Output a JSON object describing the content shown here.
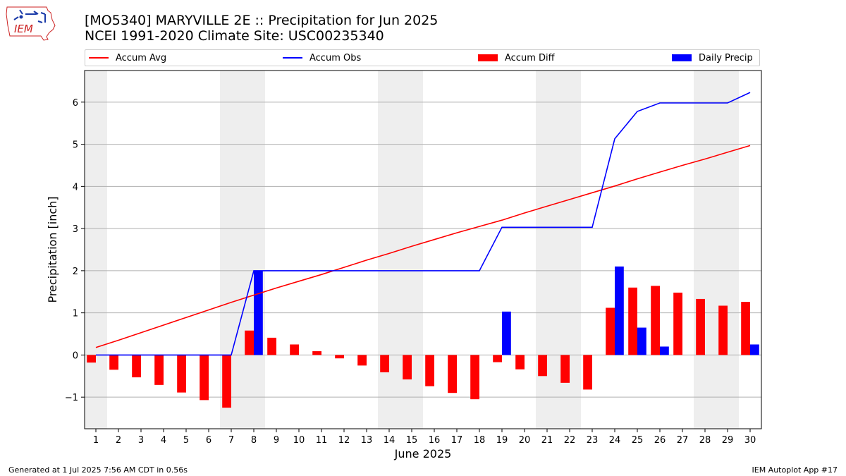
{
  "header": {
    "title_line1": "[MO5340] MARYVILLE 2E :: Precipitation for Jun 2025",
    "title_line2": "NCEI 1991-2020 Climate Site: USC00235340"
  },
  "logo": {
    "text": "IEM"
  },
  "footer": {
    "left": "Generated at 1 Jul 2025 7:56 AM CDT in 0.56s",
    "right": "IEM Autoplot App #17"
  },
  "colors": {
    "accum_avg": "#ff0000",
    "accum_obs": "#0000ff",
    "accum_diff": "#ff0000",
    "daily_precip": "#0000ff",
    "weekend_shade": "#eeeeee",
    "grid": "#b0b0b0"
  },
  "chart_data": {
    "type": "bar",
    "xlabel": "June 2025",
    "ylabel": "Precipitation [inch]",
    "xlim": [
      0.5,
      30.5
    ],
    "ylim": [
      -1.75,
      6.75
    ],
    "yticks": [
      -1,
      0,
      1,
      2,
      3,
      4,
      5,
      6
    ],
    "grid": true,
    "legend_position": "top",
    "categories": [
      "1",
      "2",
      "3",
      "4",
      "5",
      "6",
      "7",
      "8",
      "9",
      "10",
      "11",
      "12",
      "13",
      "14",
      "15",
      "16",
      "17",
      "18",
      "19",
      "20",
      "21",
      "22",
      "23",
      "24",
      "25",
      "26",
      "27",
      "28",
      "29",
      "30"
    ],
    "weekend_days": [
      1,
      7,
      8,
      14,
      15,
      21,
      22,
      28,
      29
    ],
    "series": [
      {
        "name": "Accum Avg",
        "kind": "line",
        "values": [
          0.18,
          0.35,
          0.53,
          0.71,
          0.89,
          1.07,
          1.25,
          1.42,
          1.59,
          1.75,
          1.91,
          2.08,
          2.25,
          2.41,
          2.58,
          2.74,
          2.9,
          3.05,
          3.2,
          3.37,
          3.53,
          3.69,
          3.85,
          4.01,
          4.18,
          4.34,
          4.5,
          4.65,
          4.81,
          4.97
        ]
      },
      {
        "name": "Accum Obs",
        "kind": "line",
        "values": [
          0.0,
          0.0,
          0.0,
          0.0,
          0.0,
          0.0,
          0.0,
          2.0,
          2.0,
          2.0,
          2.0,
          2.0,
          2.0,
          2.0,
          2.0,
          2.0,
          2.0,
          2.0,
          3.03,
          3.03,
          3.03,
          3.03,
          3.03,
          5.13,
          5.78,
          5.98,
          5.98,
          5.98,
          5.98,
          6.23
        ]
      },
      {
        "name": "Accum Diff",
        "kind": "bar",
        "values": [
          -0.18,
          -0.35,
          -0.53,
          -0.71,
          -0.89,
          -1.07,
          -1.25,
          0.58,
          0.41,
          0.25,
          0.09,
          -0.08,
          -0.25,
          -0.41,
          -0.58,
          -0.74,
          -0.9,
          -1.05,
          -0.17,
          -0.34,
          -0.5,
          -0.66,
          -0.82,
          1.12,
          1.6,
          1.64,
          1.48,
          1.33,
          1.17,
          1.26
        ]
      },
      {
        "name": "Daily Precip",
        "kind": "bar",
        "values": [
          0,
          0,
          0,
          0,
          0,
          0,
          0,
          2.0,
          0,
          0,
          0,
          0,
          0,
          0,
          0,
          0,
          0,
          0,
          1.03,
          0,
          0,
          0,
          0,
          2.1,
          0.65,
          0.2,
          0,
          0,
          0,
          0.25
        ]
      }
    ]
  }
}
